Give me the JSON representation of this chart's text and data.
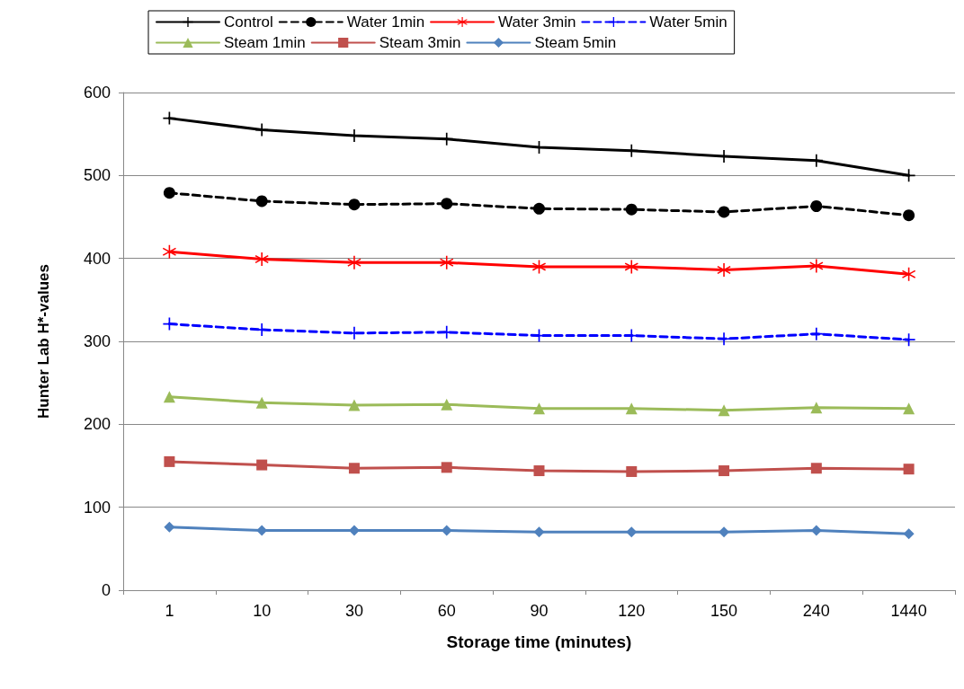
{
  "chart_data": {
    "type": "line",
    "xlabel": "Storage time (minutes)",
    "ylabel": "Hunter Lab H*-values",
    "categories": [
      "1",
      "10",
      "30",
      "60",
      "90",
      "120",
      "150",
      "240",
      "1440"
    ],
    "ylim": [
      0,
      600
    ],
    "yticks": [
      0,
      100,
      200,
      300,
      400,
      500,
      600
    ],
    "grid": "y",
    "legend": "top",
    "series": [
      {
        "name": "Control",
        "color": "#000000",
        "marker": "cross",
        "line_style": "solid",
        "values": [
          569,
          555,
          548,
          544,
          534,
          530,
          523,
          518,
          500
        ]
      },
      {
        "name": "Water 1min",
        "color": "#000000",
        "marker": "circle",
        "line_style": "dashed",
        "values": [
          479,
          469,
          465,
          466,
          460,
          459,
          456,
          463,
          452
        ]
      },
      {
        "name": "Water 3min",
        "color": "#ff0000",
        "marker": "star",
        "line_style": "solid",
        "values": [
          408,
          399,
          395,
          395,
          390,
          390,
          386,
          391,
          381
        ]
      },
      {
        "name": "Water 5min",
        "color": "#0000ff",
        "marker": "cross",
        "line_style": "dashed",
        "values": [
          321,
          314,
          310,
          311,
          307,
          307,
          303,
          309,
          302
        ]
      },
      {
        "name": "Steam 1min",
        "color": "#9bbb59",
        "marker": "triangle",
        "line_style": "solid",
        "values": [
          233,
          226,
          223,
          224,
          219,
          219,
          217,
          220,
          219
        ]
      },
      {
        "name": "Steam 3min",
        "color": "#c0504d",
        "marker": "square",
        "line_style": "solid",
        "values": [
          155,
          151,
          147,
          148,
          144,
          143,
          144,
          147,
          146
        ]
      },
      {
        "name": "Steam 5min",
        "color": "#4f81bd",
        "marker": "diamond",
        "line_style": "solid",
        "values": [
          76,
          72,
          72,
          72,
          70,
          70,
          70,
          72,
          68
        ]
      }
    ]
  }
}
